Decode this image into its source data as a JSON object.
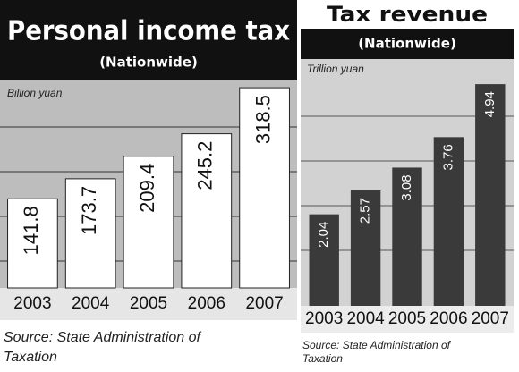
{
  "chart_data": [
    {
      "type": "bar",
      "title": "Personal income tax",
      "subtitle": "(Nationwide)",
      "y_label": "Billion yuan",
      "categories": [
        "2003",
        "2004",
        "2005",
        "2006",
        "2007"
      ],
      "values": [
        141.8,
        173.7,
        209.4,
        245.2,
        318.5
      ],
      "color": "#ffffff",
      "ylim": [
        0,
        330
      ],
      "source": "Source: State Administration of Taxation"
    },
    {
      "type": "bar",
      "title": "Tax revenue",
      "subtitle": "(Nationwide)",
      "y_label": "Trillion yuan",
      "categories": [
        "2003",
        "2004",
        "2005",
        "2006",
        "2007"
      ],
      "values": [
        2.04,
        2.57,
        3.08,
        3.76,
        4.94
      ],
      "color": "#3a3a3a",
      "ylim": [
        0,
        5.5
      ],
      "source": "Source: State Administration of Taxation"
    }
  ]
}
